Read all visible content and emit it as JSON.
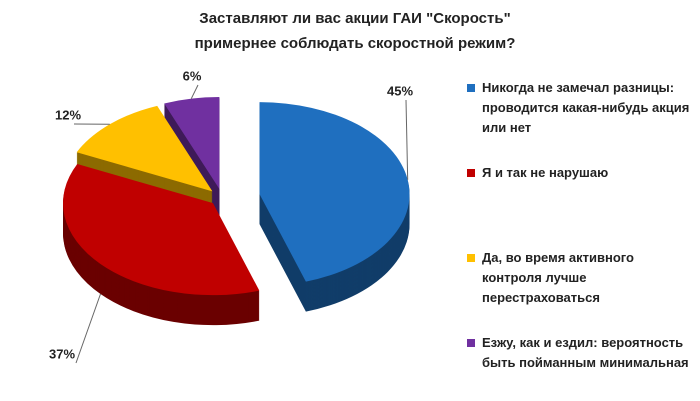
{
  "chart_data": {
    "type": "pie",
    "title": [
      "Заставляют ли вас акции ГАИ \"Скорость\"",
      "примернее соблюдать скоростной режим?"
    ],
    "categories": [
      "Никогда не замечал разницы: проводится какая-нибудь акция или нет",
      "Я и так не нарушаю",
      "Да, во время активного контроля лучше перестраховаться",
      "Езжу, как и ездил: вероятность быть пойманным минимальная"
    ],
    "values": [
      45,
      37,
      12,
      6
    ],
    "value_labels": [
      "45%",
      "37%",
      "12%",
      "6%"
    ],
    "colors": [
      "#1f6fbf",
      "#c00000",
      "#ffc000",
      "#7030a0"
    ]
  }
}
